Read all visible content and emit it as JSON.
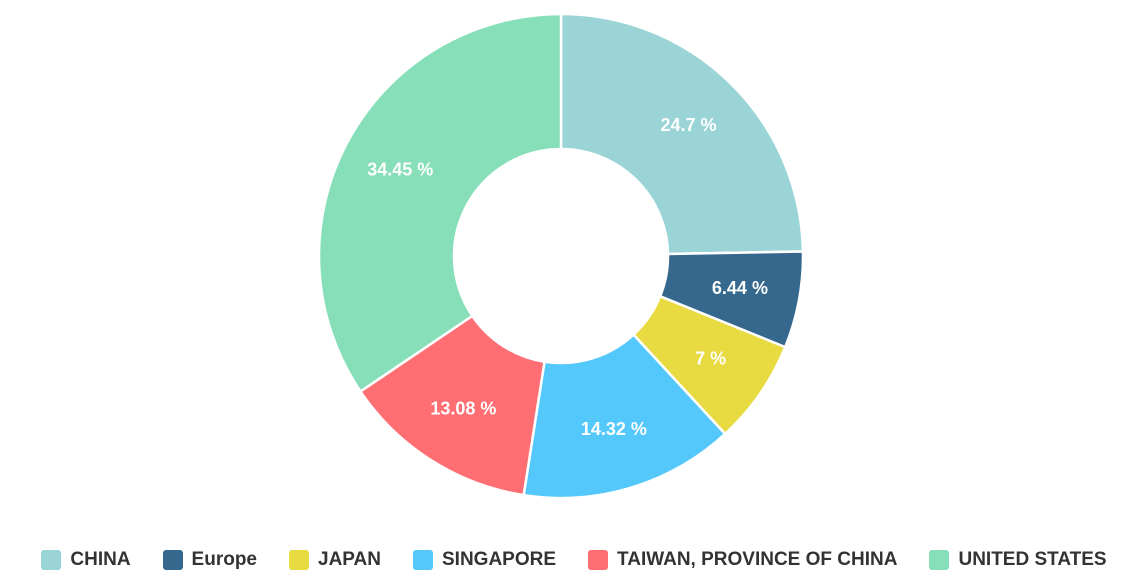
{
  "chart_data": {
    "type": "donut",
    "categories": [
      "CHINA",
      "Europe",
      "JAPAN",
      "SINGAPORE",
      "TAIWAN, PROVINCE OF CHINA",
      "UNITED STATES"
    ],
    "values": [
      24.7,
      6.44,
      7,
      14.32,
      13.08,
      34.45
    ],
    "value_labels": [
      "24.7 %",
      "6.44 %",
      "7 %",
      "14.32 %",
      "13.08 %",
      "34.45 %"
    ],
    "colors": [
      "#9ad4d6",
      "#35688c",
      "#e8da41",
      "#54c8fb",
      "#fe6e73",
      "#86dfb8"
    ]
  }
}
